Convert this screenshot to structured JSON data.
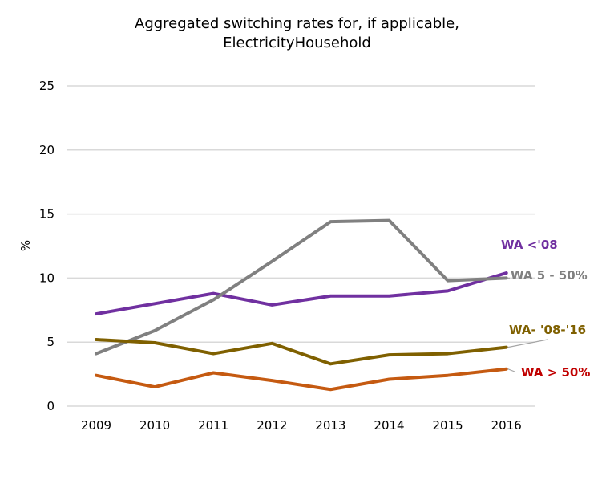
{
  "chart_data": {
    "type": "line",
    "title_line1": "Aggregated switching rates for, if applicable,",
    "title_line2": "ElectricityHousehold",
    "xlabel": "",
    "ylabel": "%",
    "ylim": [
      0,
      25
    ],
    "yticks": [
      "0",
      "5",
      "10",
      "15",
      "20",
      "25"
    ],
    "ytick_values": [
      0,
      5,
      10,
      15,
      20,
      25
    ],
    "categories": [
      "2009",
      "2010",
      "2011",
      "2012",
      "2013",
      "2014",
      "2015",
      "2016"
    ],
    "grid": true,
    "legend": "direct labels at right",
    "series": [
      {
        "name": "WA <'08",
        "color": "#7030a0",
        "label_color": "#7030a0",
        "values": [
          7.2,
          8.0,
          8.8,
          7.9,
          8.6,
          8.6,
          9.0,
          10.4
        ]
      },
      {
        "name": "WA 5 - 50%",
        "color": "#808080",
        "label_color": "#808080",
        "values": [
          4.1,
          5.9,
          8.3,
          11.3,
          14.4,
          14.5,
          9.8,
          10.0
        ]
      },
      {
        "name": "WA- '08-'16",
        "color": "#7f6000",
        "label_color": "#7f6000",
        "values": [
          5.2,
          4.95,
          4.1,
          4.9,
          3.3,
          4.0,
          4.1,
          4.6
        ]
      },
      {
        "name": "WA > 50%",
        "color": "#c55a11",
        "label_color": "#c00000",
        "values": [
          2.4,
          1.5,
          2.6,
          2.0,
          1.3,
          2.1,
          2.4,
          2.9
        ]
      }
    ]
  }
}
